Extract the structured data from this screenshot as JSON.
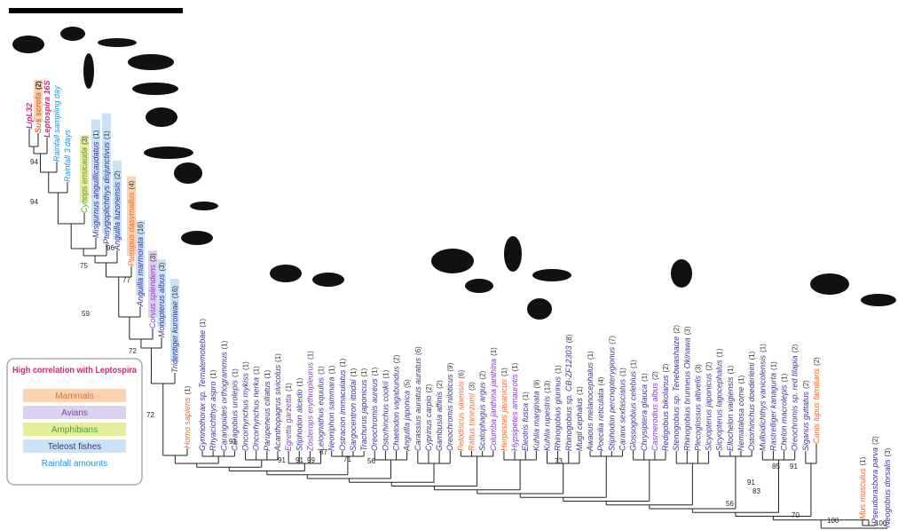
{
  "legend": {
    "title": "High correlation with Leptospira",
    "items": [
      {
        "label": "Mammals",
        "color": "#ef6a2e",
        "bg": "#f9d3b3"
      },
      {
        "label": "Avians",
        "color": "#8a3fc2",
        "bg": "#dcd2ef"
      },
      {
        "label": "Amphibians",
        "color": "#4b9e2c",
        "bg": "#e4ee9c"
      },
      {
        "label": "Teleost fishes",
        "color": "#3b3592",
        "bg": "#c9e3f5"
      },
      {
        "label": "Rainfall amounts",
        "color": "#2a8fd6"
      }
    ]
  },
  "leaves": [
    {
      "label": "LipL32",
      "color": "#e0207a"
    },
    {
      "label": "Sus scrofa",
      "count": "(2)",
      "color": "#ef6a2e",
      "bg": "#f9d3b3"
    },
    {
      "label": "Leptospira 16S",
      "color": "#e0207a"
    },
    {
      "label": "Rainfall sampling day",
      "color": "#2a8fd6"
    },
    {
      "label": "Rainfall 3 days",
      "color": "#2a8fd6"
    },
    {
      "label": "Cynops ensicauda",
      "count": "(3)",
      "color": "#4b9e2c",
      "bg": "#e4ee9c"
    },
    {
      "label": "Misgurnus anguillicaudatus",
      "count": "(1)",
      "color": "#3b3592",
      "bg": "#c9e3f5"
    },
    {
      "label": "Pterygoplichthys disjunctivus",
      "count": "(1)",
      "color": "#3b3592",
      "bg": "#c9e3f5"
    },
    {
      "label": "Anguilla luzonensis",
      "count": "(2)",
      "color": "#3b3592",
      "bg": "#c9e3f5"
    },
    {
      "label": "Pteropus dasymallus",
      "count": "(4)",
      "color": "#ef6a2e",
      "bg": "#f9d3b3"
    },
    {
      "label": "Anguilla marmorata",
      "count": "(16)",
      "color": "#3b3592",
      "bg": "#c9e3f5"
    },
    {
      "label": "Corvus splendens",
      "count": "(3)",
      "color": "#8a3fc2",
      "bg": "#dcd2ef"
    },
    {
      "label": "Monopterus albus",
      "count": "(3)",
      "color": "#3b3592",
      "bg": "#c9e3f5"
    },
    {
      "label": "Tridentiger kuroiwae",
      "count": "(16)",
      "color": "#3b3592",
      "bg": "#c9e3f5"
    },
    {
      "label": "Homo sapiens",
      "count": "(1)",
      "color": "#ef6a2e"
    },
    {
      "label": "Gymnothorax sp. Ternatemotebae",
      "count": "(1)",
      "color": "#3b3592"
    },
    {
      "label": "Rhyacichthys aspro",
      "count": "(1)",
      "color": "#3b3592"
    },
    {
      "label": "Carangoides orthogrammus",
      "count": "(1)",
      "color": "#3b3592"
    },
    {
      "label": "Caragobius urolepis",
      "count": "(1)",
      "color": "#3b3592"
    },
    {
      "label": "Oncorhynchus mykiss",
      "count": "(1)",
      "color": "#3b3592"
    },
    {
      "label": "Oncorhynchus nerka",
      "count": "(1)",
      "color": "#3b3592"
    },
    {
      "label": "Parupeneus ciliatus",
      "count": "(1)",
      "color": "#3b3592"
    },
    {
      "label": "Acanthopagrus sivicolus",
      "count": "(1)",
      "color": "#3b3592"
    },
    {
      "label": "Egretta garzetta",
      "count": "(1)",
      "color": "#8a3fc2"
    },
    {
      "label": "Stiphodon alcedo",
      "count": "(1)",
      "color": "#3b3592"
    },
    {
      "label": "Zosterops erythropleurus",
      "count": "(1)",
      "color": "#8a3fc2"
    },
    {
      "label": "Leiognathus equulus",
      "count": "(1)",
      "color": "#3b3592"
    },
    {
      "label": "Neoniphon sammara",
      "count": "(1)",
      "color": "#3b3592"
    },
    {
      "label": "Ostracion immaculatus",
      "count": "(1)",
      "color": "#3b3592"
    },
    {
      "label": "Sargocentron ittodai",
      "count": "(1)",
      "color": "#3b3592"
    },
    {
      "label": "Trachurus japonicus",
      "count": "(1)",
      "color": "#3b3592"
    },
    {
      "label": "Oreochromis aureus",
      "count": "(1)",
      "color": "#3b3592"
    },
    {
      "label": "Ostorhinchus cookii",
      "count": "(1)",
      "color": "#3b3592"
    },
    {
      "label": "Chaetodon vagabundus",
      "count": "(2)",
      "color": "#3b3592"
    },
    {
      "label": "Anguilla japonica",
      "count": "(5)",
      "color": "#3b3592"
    },
    {
      "label": "Carassius auratus auratus",
      "count": "(6)",
      "color": "#3b3592"
    },
    {
      "label": "Cyprinus carpio",
      "count": "(2)",
      "color": "#3b3592"
    },
    {
      "label": "Gambusia affinis",
      "count": "(2)",
      "color": "#3b3592"
    },
    {
      "label": "Oreochromis niloticus",
      "count": "(9)",
      "color": "#3b3592"
    },
    {
      "label": "Pelodiscus sinensis",
      "count": "(6)",
      "color": "#ef6a2e"
    },
    {
      "label": "Rattus tanezumi",
      "count": "(3)",
      "color": "#ef6a2e"
    },
    {
      "label": "Scatophagus argus",
      "count": "(2)",
      "color": "#3b3592"
    },
    {
      "label": "Columba janthina janthina",
      "count": "(1)",
      "color": "#8a3fc2"
    },
    {
      "label": "Herpestes javanicus",
      "count": "(1)",
      "color": "#ef6a2e"
    },
    {
      "label": "Hypsipetes amaurotis",
      "count": "(1)",
      "color": "#8a3fc2"
    },
    {
      "label": "Eleotris fusca",
      "count": "(1)",
      "color": "#3b3592"
    },
    {
      "label": "Kuhlia marginata",
      "count": "(9)",
      "color": "#3b3592"
    },
    {
      "label": "Kuhlia rupestris",
      "count": "(13)",
      "color": "#3b3592"
    },
    {
      "label": "Rhinogobius giurinus",
      "count": "(1)",
      "color": "#3b3592"
    },
    {
      "label": "Rhinogobius sp. CB-ZF12303",
      "count": "(8)",
      "color": "#3b3592"
    },
    {
      "label": "Mugil cephalus",
      "count": "(1)",
      "color": "#3b3592"
    },
    {
      "label": "Awaous melanocephalus",
      "count": "(1)",
      "color": "#3b3592"
    },
    {
      "label": "Poecilia reticulata",
      "count": "(4)",
      "color": "#3b3592"
    },
    {
      "label": "Stiphodon percnopterygionus",
      "count": "(7)",
      "color": "#3b3592"
    },
    {
      "label": "Caranx sexfasciatus",
      "count": "(1)",
      "color": "#3b3592"
    },
    {
      "label": "Glossogobius celebius",
      "count": "(1)",
      "color": "#3b3592"
    },
    {
      "label": "Chrysiptera glauca",
      "count": "(1)",
      "color": "#3b3592"
    },
    {
      "label": "Casmerodius albus",
      "count": "(2)",
      "color": "#8a3fc2"
    },
    {
      "label": "Redigobius bikolanus",
      "count": "(2)",
      "color": "#3b3592"
    },
    {
      "label": "Stenogobius sp. Tenebwashaize",
      "count": "(2)",
      "color": "#3b3592"
    },
    {
      "label": "Rhinogobius brunneus Okinawa",
      "count": "(3)",
      "color": "#3b3592"
    },
    {
      "label": "Plecoglossus altivelis",
      "count": "(3)",
      "color": "#3b3592"
    },
    {
      "label": "Sicyopterus japonicus",
      "count": "(2)",
      "color": "#3b3592"
    },
    {
      "label": "Sicyopterus lagocephalus",
      "count": "(1)",
      "color": "#3b3592"
    },
    {
      "label": "Ellochelon vaigiensis",
      "count": "(1)",
      "color": "#3b3592"
    },
    {
      "label": "Nematalosa come",
      "count": "(1)",
      "color": "#3b3592"
    },
    {
      "label": "Ostorhinchus doederleini",
      "count": "(1)",
      "color": "#3b3592"
    },
    {
      "label": "Mulloidichthys vanicolensis",
      "count": "(1)",
      "color": "#3b3592"
    },
    {
      "label": "Rastrelliger kanagurta",
      "count": "(1)",
      "color": "#3b3592"
    },
    {
      "label": "Chelon macrolepis",
      "count": "(1)",
      "color": "#3b3592"
    },
    {
      "label": "Oreochromis sp. red tilapia",
      "count": "(2)",
      "color": "#3b3592"
    },
    {
      "label": "Siganus guttatus",
      "count": "(2)",
      "color": "#3b3592"
    },
    {
      "label": "Canis lupus familiaris",
      "count": "(2)",
      "color": "#ef6a2e"
    },
    {
      "label": "Mus musculus",
      "count": "(1)",
      "color": "#ef6a2e"
    },
    {
      "label": "Pseudorasbora parva",
      "count": "(2)",
      "color": "#3b3592"
    },
    {
      "label": "Neogobius dorsalis",
      "count": "(3)",
      "color": "#3b3592"
    }
  ],
  "support_values": [
    94,
    94,
    75,
    96,
    77,
    59,
    72,
    72,
    91,
    91,
    91,
    99,
    67,
    71,
    56,
    73,
    91,
    83,
    85,
    91,
    56,
    70,
    100,
    100
  ]
}
